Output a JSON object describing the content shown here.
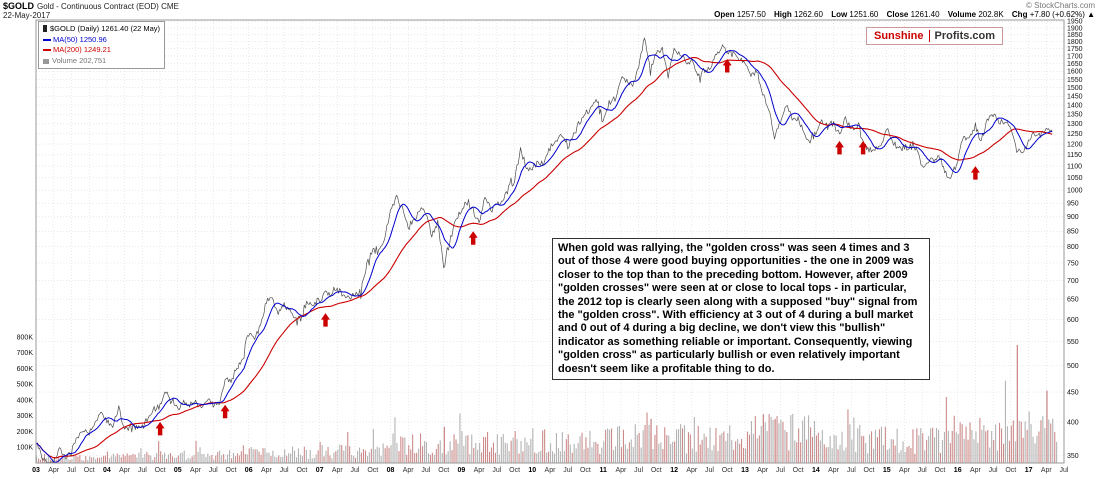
{
  "header": {
    "symbol": "$GOLD",
    "title": "Gold - Continuous Contract (EOD) CME",
    "date": "22-May-2017",
    "copyright": "© StockCharts.com",
    "quote": {
      "open_label": "Open",
      "open": "1257.50",
      "high_label": "High",
      "high": "1262.60",
      "low_label": "Low",
      "low": "1251.60",
      "close_label": "Close",
      "close": "1261.40",
      "volume_label": "Volume",
      "volume": "202.8K",
      "chg_label": "Chg",
      "chg": "+7.80 (+0.62%) ▲"
    }
  },
  "legend": {
    "price": "$GOLD (Daily) 1261.40 (22 May)",
    "ma50": "MA(50) 1250.96",
    "ma200": "MA(200) 1249.21",
    "volume": "Volume 202,751"
  },
  "watermark": {
    "part1": "Sunshine",
    "part2": "Profits.com"
  },
  "annotation": "When gold was rallying, the \"golden cross\" was seen 4 times and 3 out of those 4 were good buying opportunities - the one in 2009 was closer to the top than to the preceding bottom. However, after 2009 \"golden crosses\" were seen at or close to local tops - in particular, the 2012 top is clearly seen along with a supposed \"buy\" signal from the \"golden cross\". With efficiency at 3 out of 4 during a bull market and 0 out of 4 during a big decline, we don't view this \"bullish\" indicator as something reliable or important. Consequently, viewing \"golden cross\" as particularly bullish or even relatively important doesn't seem like a profitable thing to do.",
  "colors": {
    "grid": "#dadada",
    "border": "#999999",
    "arrow": "#cc0000",
    "volume_gray": "#b3b3b3",
    "volume_red": "#cc8a8a",
    "year_label": "#000000",
    "month_label": "#333333"
  },
  "chart_data": {
    "type": "line",
    "title": "$GOLD Gold - Continuous Contract (EOD) CME, Daily, with MA(50) and MA(200)",
    "x_start": "2003-01",
    "x_end": "2017-05",
    "y_axis": {
      "scale": "log",
      "side": "right",
      "min": 340,
      "max": 1960,
      "tick_min": 350,
      "tick_max": 1950,
      "tick_step": 50
    },
    "volume_axis": {
      "side": "left",
      "max_k": 800,
      "labels": [
        "800K",
        "700K",
        "600K",
        "500K",
        "400K",
        "300K",
        "200K",
        "100K"
      ]
    },
    "x_tick_labels": {
      "years": [
        "03",
        "04",
        "05",
        "06",
        "07",
        "08",
        "09",
        "10",
        "11",
        "12",
        "13",
        "14",
        "15",
        "16",
        "17"
      ],
      "quarters": [
        "Apr",
        "Jul",
        "Oct"
      ]
    },
    "series": [
      {
        "name": "$GOLD monthly close",
        "color": "#4d4d4d",
        "values": [
          368,
          350,
          336,
          339,
          361,
          346,
          355,
          376,
          386,
          385,
          398,
          416,
          402,
          396,
          424,
          388,
          394,
          392,
          391,
          410,
          420,
          425,
          453,
          438,
          422,
          435,
          428,
          435,
          418,
          437,
          429,
          433,
          473,
          470,
          495,
          517,
          568,
          561,
          582,
          644,
          653,
          613,
          634,
          623,
          599,
          604,
          646,
          636,
          650,
          664,
          661,
          677,
          659,
          650,
          665,
          672,
          743,
          789,
          783,
          833,
          923,
          971,
          933,
          871,
          885,
          928,
          918,
          833,
          884,
          730,
          816,
          884,
          928,
          952,
          922,
          883,
          975,
          927,
          953,
          953,
          1008,
          1040,
          1175,
          1096,
          1083,
          1118,
          1113,
          1180,
          1215,
          1244,
          1181,
          1248,
          1307,
          1357,
          1385,
          1421,
          1327,
          1409,
          1439,
          1556,
          1536,
          1502,
          1628,
          1826,
          1620,
          1725,
          1746,
          1566,
          1737,
          1711,
          1668,
          1664,
          1558,
          1604,
          1615,
          1685,
          1771,
          1719,
          1715,
          1676,
          1661,
          1588,
          1595,
          1472,
          1387,
          1224,
          1313,
          1396,
          1327,
          1323,
          1250,
          1202,
          1240,
          1321,
          1284,
          1296,
          1246,
          1322,
          1281,
          1287,
          1209,
          1173,
          1176,
          1184,
          1279,
          1213,
          1183,
          1184,
          1189,
          1172,
          1095,
          1135,
          1115,
          1142,
          1065,
          1060,
          1116,
          1234,
          1233,
          1290,
          1215,
          1321,
          1351,
          1309,
          1317,
          1273,
          1174,
          1152,
          1211,
          1253,
          1247,
          1268,
          1261
        ]
      },
      {
        "name": "MA(50)",
        "color": "#0000cc",
        "window_trading_days": 50
      },
      {
        "name": "MA(200)",
        "color": "#cc0000",
        "window_trading_days": 200
      }
    ],
    "golden_cross_arrows": [
      {
        "date": "2004-10",
        "price": 400
      },
      {
        "date": "2005-09",
        "price": 428
      },
      {
        "date": "2007-02",
        "price": 615
      },
      {
        "date": "2009-03",
        "price": 850
      },
      {
        "date": "2012-10",
        "price": 1680
      },
      {
        "date": "2014-05",
        "price": 1215
      },
      {
        "date": "2014-09",
        "price": 1215
      },
      {
        "date": "2016-04",
        "price": 1100
      }
    ],
    "volume_profile_k": {
      "yearly": {
        "2003": 35,
        "2004": 45,
        "2005": 50,
        "2006": 65,
        "2007": 75,
        "2008": 115,
        "2009": 125,
        "2010": 135,
        "2011": 155,
        "2012": 150,
        "2013": 190,
        "2014": 150,
        "2015": 140,
        "2016": 175,
        "2017": 185
      },
      "spikes": [
        {
          "date": "2008-10",
          "value_k": 230
        },
        {
          "date": "2011-09",
          "value_k": 280
        },
        {
          "date": "2013-04",
          "value_k": 310
        },
        {
          "date": "2013-06",
          "value_k": 280
        },
        {
          "date": "2016-11",
          "value_k": 750
        },
        {
          "date": "2017-04",
          "value_k": 460
        }
      ]
    }
  }
}
